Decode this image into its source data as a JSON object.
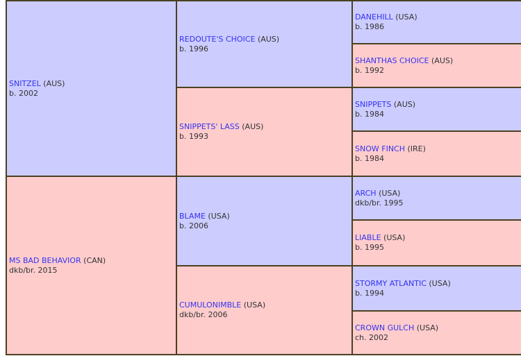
{
  "pedigree": {
    "parents": [
      {
        "name": "SNITZEL",
        "country": "(AUS)",
        "info": "b. 2002",
        "sex": "sire"
      },
      {
        "name": "MS BAD BEHAVIOR",
        "country": "(CAN)",
        "info": "dkb/br. 2015",
        "sex": "dam"
      }
    ],
    "grandparents": [
      {
        "name": "REDOUTE'S CHOICE",
        "country": "(AUS)",
        "info": "b. 1996",
        "sex": "sire"
      },
      {
        "name": "SNIPPETS' LASS",
        "country": "(AUS)",
        "info": "b. 1993",
        "sex": "dam"
      },
      {
        "name": "BLAME",
        "country": "(USA)",
        "info": "b. 2006",
        "sex": "sire"
      },
      {
        "name": "CUMULONIMBLE",
        "country": "(USA)",
        "info": "dkb/br. 2006",
        "sex": "dam"
      }
    ],
    "great_grandparents": [
      {
        "name": "DANEHILL",
        "country": "(USA)",
        "info": "b. 1986",
        "sex": "sire"
      },
      {
        "name": "SHANTHAS CHOICE",
        "country": "(AUS)",
        "info": "b. 1992",
        "sex": "dam"
      },
      {
        "name": "SNIPPETS",
        "country": "(AUS)",
        "info": "b. 1984",
        "sex": "sire"
      },
      {
        "name": "SNOW FINCH",
        "country": "(IRE)",
        "info": "b. 1984",
        "sex": "dam"
      },
      {
        "name": "ARCH",
        "country": "(USA)",
        "info": "dkb/br. 1995",
        "sex": "sire"
      },
      {
        "name": "LIABLE",
        "country": "(USA)",
        "info": "b. 1995",
        "sex": "dam"
      },
      {
        "name": "STORMY ATLANTIC",
        "country": "(USA)",
        "info": "b. 1994",
        "sex": "sire"
      },
      {
        "name": "CROWN GULCH",
        "country": "(USA)",
        "info": "ch. 2002",
        "sex": "dam"
      }
    ]
  },
  "colors": {
    "sire": "#ccccff",
    "dam": "#ffcccc",
    "link": "#3333ee",
    "border": "#4a4020"
  }
}
